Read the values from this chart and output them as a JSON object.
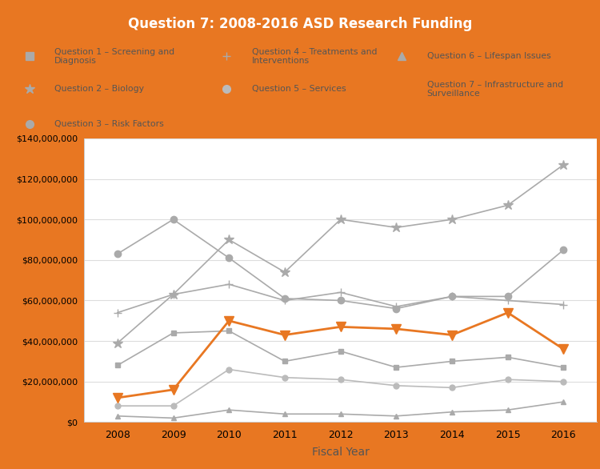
{
  "title": "Question 7: 2008-2016 ASD Research Funding",
  "xlabel": "Fiscal Year",
  "title_bg_color": "#E87722",
  "title_text_color": "#FFFFFF",
  "outer_border_color": "#E87722",
  "inner_bg_color": "#FFFFFF",
  "line_color_gray": "#AAAAAA",
  "line_color_orange": "#E87722",
  "years": [
    2008,
    2009,
    2010,
    2011,
    2012,
    2013,
    2014,
    2015,
    2016
  ],
  "q1_screening": [
    28000000,
    44000000,
    45000000,
    30000000,
    35000000,
    27000000,
    30000000,
    32000000,
    27000000
  ],
  "q2_biology": [
    39000000,
    63000000,
    90000000,
    74000000,
    100000000,
    96000000,
    100000000,
    107000000,
    127000000
  ],
  "q3_risk_factors": [
    83000000,
    100000000,
    81000000,
    61000000,
    60000000,
    56000000,
    62000000,
    62000000,
    85000000
  ],
  "q4_treatments": [
    54000000,
    63000000,
    68000000,
    60000000,
    64000000,
    57000000,
    62000000,
    60000000,
    58000000
  ],
  "q5_services": [
    8000000,
    8000000,
    26000000,
    22000000,
    21000000,
    18000000,
    17000000,
    21000000,
    20000000
  ],
  "q6_lifespan": [
    3000000,
    2000000,
    6000000,
    4000000,
    4000000,
    3000000,
    5000000,
    6000000,
    10000000
  ],
  "q7_infrastructure": [
    12000000,
    16000000,
    50000000,
    43000000,
    47000000,
    46000000,
    43000000,
    54000000,
    36000000
  ],
  "ylim": [
    0,
    140000000
  ],
  "ytick_step": 20000000,
  "grid_color": "#DDDDDD",
  "text_color": "#555555",
  "legend": [
    {
      "label": "Question 1 – Screening and\nDiagnosis",
      "marker": "s",
      "color": "#AAAAAA",
      "col": 0,
      "row": 0
    },
    {
      "label": "Question 2 – Biology",
      "marker": "*",
      "color": "#AAAAAA",
      "col": 0,
      "row": 1
    },
    {
      "label": "Question 3 – Risk Factors",
      "marker": "o",
      "color": "#AAAAAA",
      "col": 0,
      "row": 2
    },
    {
      "label": "Question 4 – Treatments and\nInterventions",
      "marker": "+",
      "color": "#AAAAAA",
      "col": 1,
      "row": 0
    },
    {
      "label": "Question 5 – Services",
      "marker": "o",
      "color": "#BBBBBB",
      "col": 1,
      "row": 1
    },
    {
      "label": "Question 6 – Lifespan Issues",
      "marker": "^",
      "color": "#AAAAAA",
      "col": 2,
      "row": 0
    },
    {
      "label": "Question 7 – Infrastructure and\nSurveillance",
      "marker": "v",
      "color": "#E87722",
      "col": 2,
      "row": 1
    }
  ]
}
